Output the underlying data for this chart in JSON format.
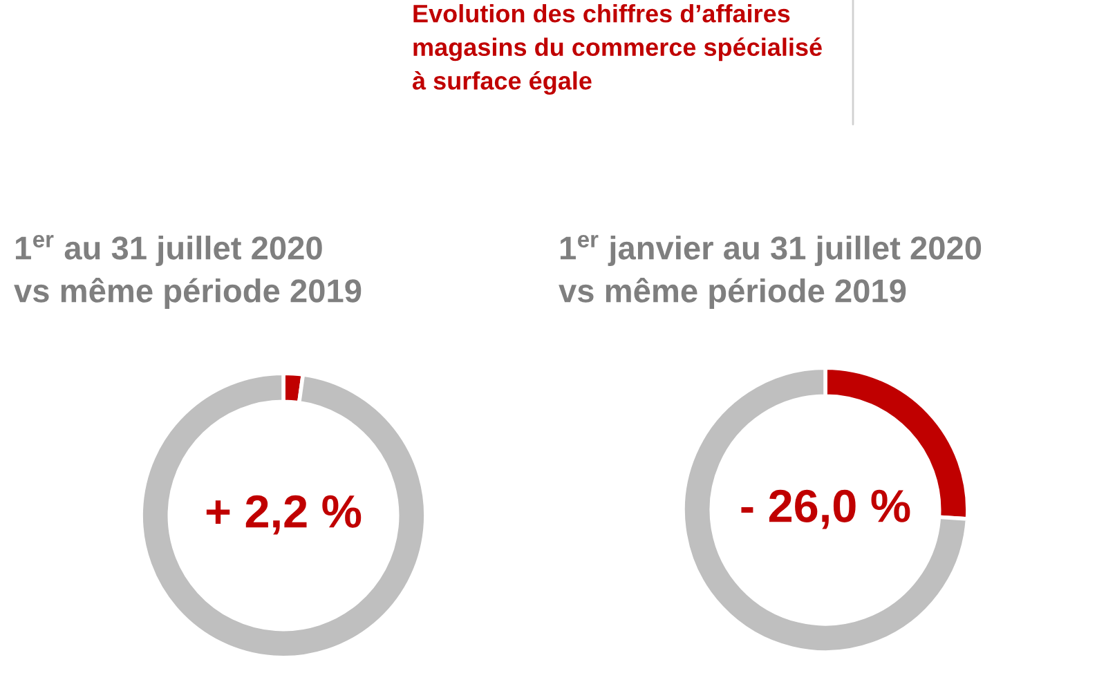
{
  "chart_data": [
    {
      "type": "other",
      "title": "Evolution des chiffres d’affaires\nmagasins du commerce spécialisé\nà surface égale"
    },
    {
      "type": "donut",
      "title": "1$^{er}$ au 31 juillet 2020",
      "subtitle": "vs même période 2019",
      "categories": [
        null,
        null
      ],
      "values": [
        2.2,
        97.8
      ],
      "colors": [
        "#c00000",
        "#bfbfbf"
      ],
      "annotations": [
        "+ 2,2 %"
      ]
    },
    {
      "type": "donut",
      "title": "1$^{er}$ janvier au 31 juillet 2020",
      "subtitle": "vs même période 2019",
      "categories": [
        null,
        null
      ],
      "values": [
        26.0,
        74.0
      ],
      "colors": [
        "#c00000",
        "#bfbfbf"
      ],
      "annotations": [
        "- 26,0 %"
      ]
    }
  ]
}
